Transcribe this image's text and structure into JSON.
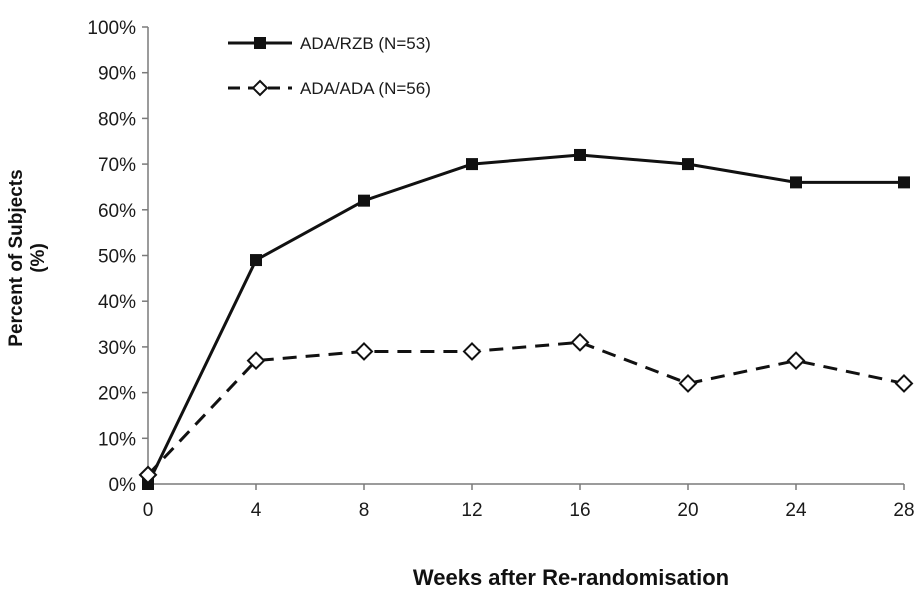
{
  "chart_data": {
    "type": "line",
    "xlabel": "Weeks after Re-randomisation",
    "ylabel_lines": [
      "Percent of Subjects",
      "(%)"
    ],
    "x": [
      0,
      4,
      8,
      12,
      16,
      20,
      24,
      28
    ],
    "xlim": [
      0,
      28
    ],
    "ylim": [
      0,
      100
    ],
    "x_tick_labels": [
      "0",
      "4",
      "8",
      "12",
      "16",
      "20",
      "24",
      "28"
    ],
    "y_tick_labels": [
      "0%",
      "10%",
      "20%",
      "30%",
      "40%",
      "50%",
      "60%",
      "70%",
      "80%",
      "90%",
      "100%"
    ],
    "grid": false,
    "legend_position": "top-left",
    "series": [
      {
        "name": "ADA/RZB (N=53)",
        "values": [
          0,
          49,
          62,
          70,
          72,
          70,
          66,
          66
        ],
        "line_style": "solid",
        "marker": "filled-square",
        "color": "#111111"
      },
      {
        "name": "ADA/ADA (N=56)",
        "values": [
          2,
          27,
          29,
          29,
          31,
          22,
          27,
          22
        ],
        "line_style": "dashed",
        "marker": "open-diamond",
        "color": "#111111"
      }
    ]
  }
}
